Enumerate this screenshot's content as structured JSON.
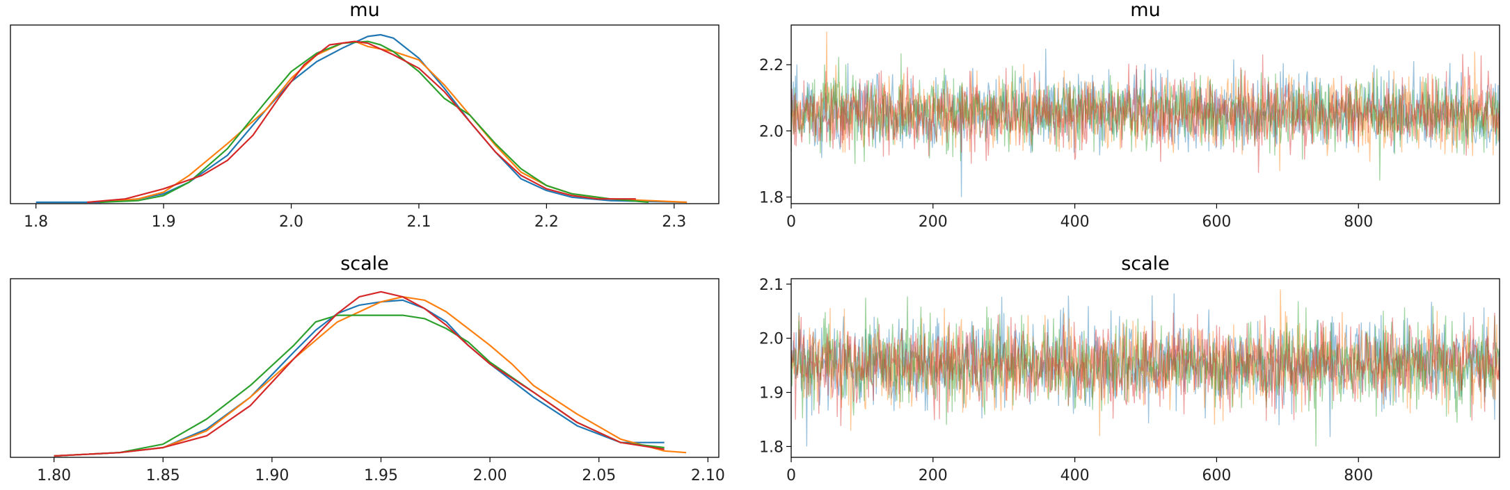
{
  "series_colors": [
    "#1f77b4",
    "#ff7f0e",
    "#2ca02c",
    "#d62728"
  ],
  "chart_data": [
    {
      "type": "line",
      "kind": "density",
      "title": "mu",
      "xlim": [
        1.78,
        2.335
      ],
      "x_ticks": [
        1.8,
        1.9,
        2.0,
        2.1,
        2.2,
        2.3
      ],
      "x_tick_labels": [
        "1.8",
        "1.9",
        "2.0",
        "2.1",
        "2.2",
        "2.3"
      ],
      "y_ticks_shown": false,
      "series": [
        {
          "x": [
            1.8,
            1.85,
            1.88,
            1.9,
            1.92,
            1.95,
            1.98,
            2.0,
            2.02,
            2.04,
            2.06,
            2.07,
            2.08,
            2.1,
            2.12,
            2.14,
            2.16,
            2.18,
            2.2,
            2.22,
            2.25,
            2.31
          ],
          "y": [
            0.0,
            0.0,
            0.02,
            0.05,
            0.12,
            0.28,
            0.55,
            0.72,
            0.84,
            0.92,
            0.99,
            1.0,
            0.98,
            0.86,
            0.68,
            0.48,
            0.3,
            0.14,
            0.07,
            0.03,
            0.01,
            0.0
          ]
        },
        {
          "x": [
            1.85,
            1.88,
            1.9,
            1.92,
            1.95,
            1.98,
            2.0,
            2.02,
            2.04,
            2.05,
            2.06,
            2.08,
            2.1,
            2.12,
            2.14,
            2.16,
            2.18,
            2.2,
            2.22,
            2.25,
            2.31
          ],
          "y": [
            0.0,
            0.02,
            0.06,
            0.16,
            0.35,
            0.55,
            0.74,
            0.88,
            0.95,
            0.96,
            0.93,
            0.9,
            0.85,
            0.7,
            0.52,
            0.34,
            0.18,
            0.1,
            0.05,
            0.02,
            0.0
          ]
        },
        {
          "x": [
            1.85,
            1.88,
            1.9,
            1.92,
            1.95,
            1.98,
            2.0,
            2.02,
            2.04,
            2.06,
            2.07,
            2.08,
            2.1,
            2.12,
            2.14,
            2.16,
            2.18,
            2.2,
            2.22,
            2.25,
            2.28
          ],
          "y": [
            0.0,
            0.01,
            0.04,
            0.12,
            0.32,
            0.6,
            0.78,
            0.89,
            0.95,
            0.96,
            0.94,
            0.9,
            0.78,
            0.62,
            0.52,
            0.35,
            0.2,
            0.1,
            0.05,
            0.02,
            0.0
          ]
        },
        {
          "x": [
            1.84,
            1.87,
            1.9,
            1.93,
            1.95,
            1.97,
            1.99,
            2.01,
            2.03,
            2.05,
            2.06,
            2.08,
            2.1,
            2.12,
            2.14,
            2.16,
            2.18,
            2.2,
            2.22,
            2.24,
            2.27
          ],
          "y": [
            0.0,
            0.02,
            0.08,
            0.16,
            0.25,
            0.4,
            0.62,
            0.82,
            0.94,
            0.96,
            0.95,
            0.88,
            0.8,
            0.66,
            0.48,
            0.3,
            0.16,
            0.08,
            0.04,
            0.02,
            0.02
          ]
        }
      ]
    },
    {
      "type": "line",
      "kind": "trace",
      "title": "mu",
      "xlim": [
        0,
        999
      ],
      "ylim": [
        1.78,
        2.32
      ],
      "x_ticks": [
        0,
        200,
        400,
        600,
        800
      ],
      "x_tick_labels": [
        "0",
        "200",
        "400",
        "600",
        "800"
      ],
      "y_ticks": [
        1.8,
        2.0,
        2.2
      ],
      "y_tick_labels": [
        "1.8",
        "2.0",
        "2.2"
      ],
      "n_draws": 1000,
      "center": 2.055,
      "spread": 0.055,
      "visible_extremes": [
        {
          "x": 240,
          "y": 1.8
        },
        {
          "x": 50,
          "y": 2.3
        },
        {
          "x": 830,
          "y": 1.85
        }
      ]
    },
    {
      "type": "line",
      "kind": "density",
      "title": "scale",
      "xlim": [
        1.78,
        2.105
      ],
      "x_ticks": [
        1.8,
        1.85,
        1.9,
        1.95,
        2.0,
        2.05,
        2.1
      ],
      "x_tick_labels": [
        "1.80",
        "1.85",
        "1.90",
        "1.95",
        "2.00",
        "2.05",
        "2.10"
      ],
      "y_ticks_shown": false,
      "series": [
        {
          "x": [
            1.8,
            1.83,
            1.85,
            1.87,
            1.89,
            1.91,
            1.92,
            1.93,
            1.94,
            1.95,
            1.96,
            1.97,
            1.98,
            1.99,
            2.0,
            2.02,
            2.04,
            2.06,
            2.08
          ],
          "y": [
            0.0,
            0.02,
            0.05,
            0.16,
            0.35,
            0.62,
            0.75,
            0.85,
            0.9,
            0.92,
            0.93,
            0.88,
            0.8,
            0.66,
            0.55,
            0.35,
            0.18,
            0.08,
            0.08
          ]
        },
        {
          "x": [
            1.8,
            1.83,
            1.85,
            1.87,
            1.89,
            1.91,
            1.93,
            1.95,
            1.96,
            1.97,
            1.98,
            1.99,
            2.0,
            2.01,
            2.02,
            2.04,
            2.06,
            2.08,
            2.09
          ],
          "y": [
            0.0,
            0.02,
            0.05,
            0.15,
            0.35,
            0.58,
            0.8,
            0.92,
            0.95,
            0.93,
            0.86,
            0.76,
            0.66,
            0.55,
            0.42,
            0.25,
            0.1,
            0.03,
            0.02
          ]
        },
        {
          "x": [
            1.8,
            1.83,
            1.85,
            1.87,
            1.89,
            1.91,
            1.92,
            1.93,
            1.95,
            1.96,
            1.97,
            1.98,
            1.99,
            2.0,
            2.02,
            2.04,
            2.06,
            2.08
          ],
          "y": [
            0.0,
            0.02,
            0.07,
            0.22,
            0.42,
            0.66,
            0.8,
            0.84,
            0.84,
            0.84,
            0.82,
            0.76,
            0.68,
            0.56,
            0.38,
            0.2,
            0.08,
            0.05
          ]
        },
        {
          "x": [
            1.8,
            1.83,
            1.85,
            1.87,
            1.89,
            1.91,
            1.93,
            1.94,
            1.95,
            1.96,
            1.97,
            1.98,
            1.99,
            2.0,
            2.02,
            2.04,
            2.06,
            2.08
          ],
          "y": [
            0.0,
            0.02,
            0.05,
            0.12,
            0.3,
            0.58,
            0.85,
            0.95,
            0.98,
            0.95,
            0.88,
            0.78,
            0.66,
            0.55,
            0.38,
            0.2,
            0.08,
            0.04
          ]
        }
      ]
    },
    {
      "type": "line",
      "kind": "trace",
      "title": "scale",
      "xlim": [
        0,
        999
      ],
      "ylim": [
        1.78,
        2.11
      ],
      "x_ticks": [
        0,
        200,
        400,
        600,
        800
      ],
      "x_tick_labels": [
        "0",
        "200",
        "400",
        "600",
        "800"
      ],
      "y_ticks": [
        1.8,
        1.9,
        2.0,
        2.1
      ],
      "y_tick_labels": [
        "1.8",
        "1.9",
        "2.0",
        "2.1"
      ],
      "n_draws": 1000,
      "center": 1.953,
      "spread": 0.038,
      "visible_extremes": [
        {
          "x": 22,
          "y": 1.8
        },
        {
          "x": 690,
          "y": 2.09
        },
        {
          "x": 740,
          "y": 1.8
        }
      ]
    }
  ]
}
